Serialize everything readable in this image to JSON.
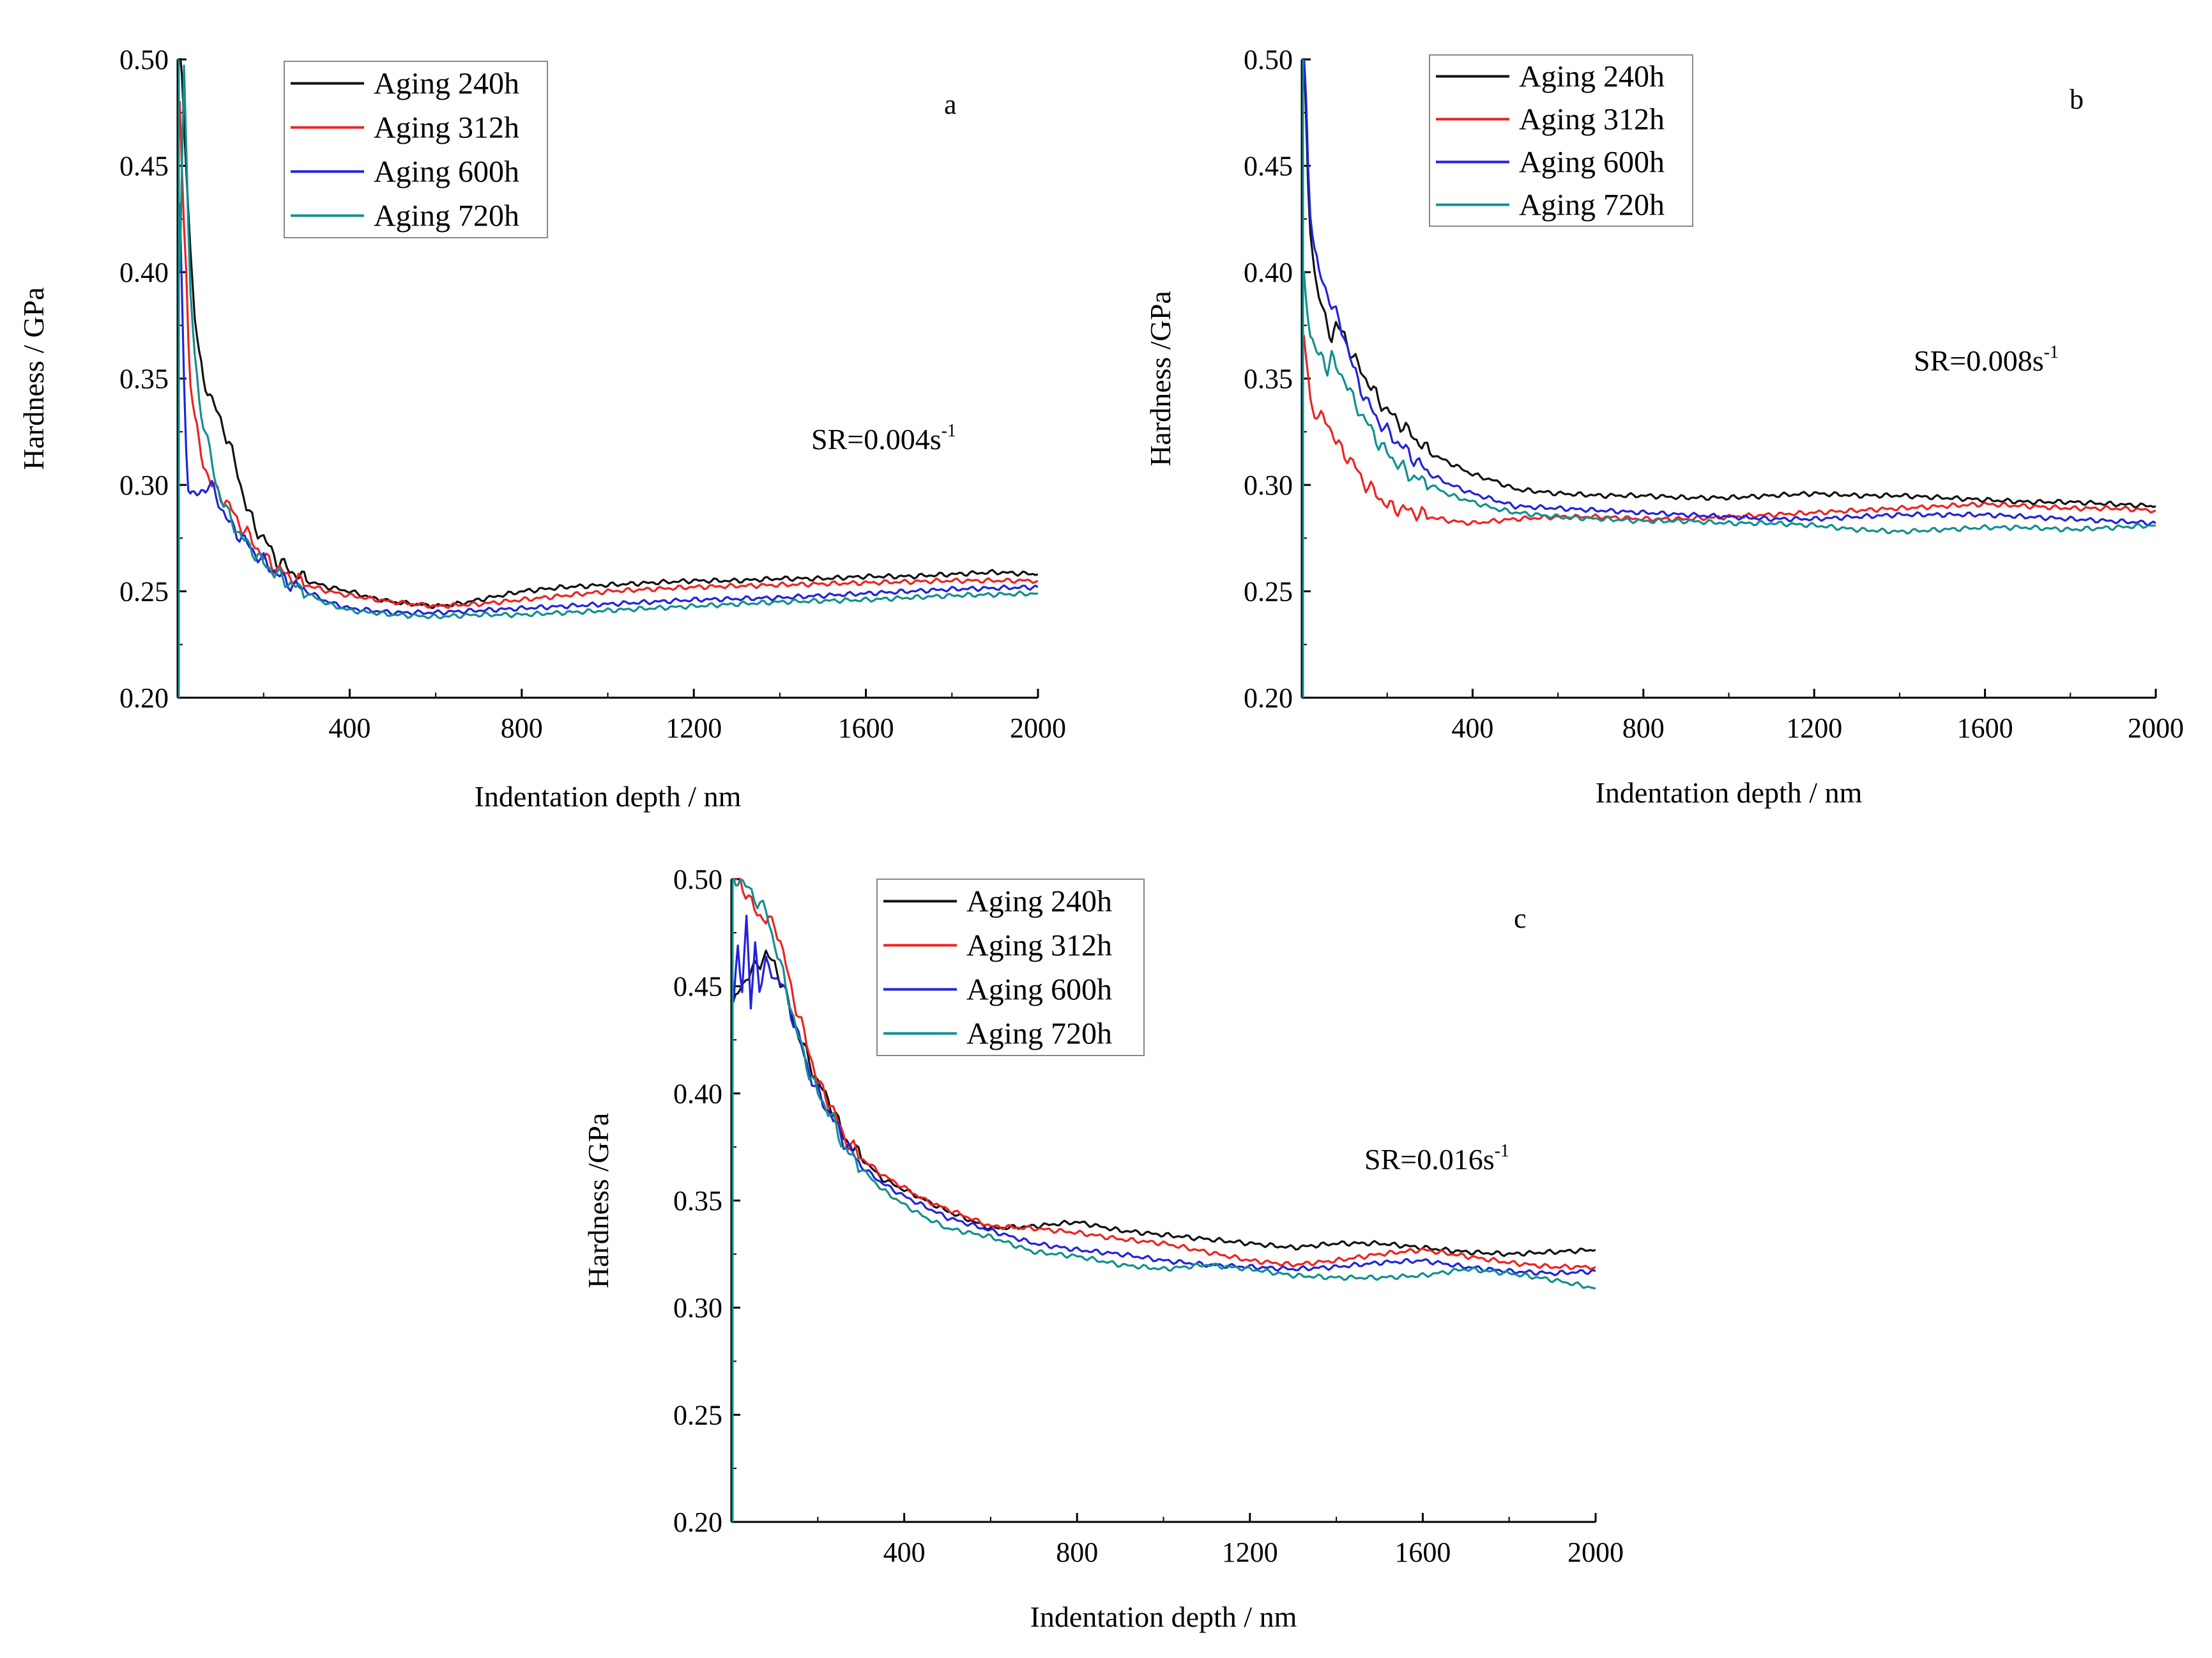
{
  "figure": {
    "series_colors": {
      "Aging 240h": "#111111",
      "Aging 312h": "#ee2222",
      "Aging 600h": "#2222dd",
      "Aging 720h": "#128f8f"
    },
    "x_ticks": [
      "400",
      "800",
      "1200",
      "1600",
      "2000"
    ],
    "y_ticks": [
      "0.20",
      "0.25",
      "0.30",
      "0.35",
      "0.40",
      "0.45",
      "0.50"
    ]
  },
  "chart_data": [
    {
      "type": "line",
      "panel": "a",
      "title": "",
      "xlabel": "Indentation depth / nm",
      "ylabel": "Hardness / GPa",
      "xlim": [
        0,
        2000
      ],
      "ylim": [
        0.2,
        0.5
      ],
      "annotation": {
        "text": "SR=0.004s",
        "superscript": "-1"
      },
      "legend_position": "top-left",
      "series": [
        {
          "name": "Aging 240h",
          "x": [
            5,
            10,
            15,
            20,
            25,
            30,
            40,
            50,
            60,
            70,
            80,
            90,
            100,
            120,
            140,
            160,
            180,
            200,
            230,
            260,
            300,
            350,
            400,
            450,
            500,
            550,
            600,
            650,
            700,
            750,
            800,
            900,
            1000,
            1100,
            1200,
            1300,
            1400,
            1500,
            1600,
            1700,
            1800,
            1900,
            2000
          ],
          "y": [
            0.5,
            0.49,
            0.47,
            0.45,
            0.43,
            0.41,
            0.38,
            0.36,
            0.35,
            0.345,
            0.34,
            0.335,
            0.33,
            0.32,
            0.305,
            0.29,
            0.28,
            0.275,
            0.265,
            0.26,
            0.255,
            0.252,
            0.25,
            0.247,
            0.245,
            0.244,
            0.243,
            0.244,
            0.246,
            0.248,
            0.25,
            0.252,
            0.253,
            0.254,
            0.255,
            0.255,
            0.256,
            0.256,
            0.257,
            0.257,
            0.258,
            0.259,
            0.258
          ]
        },
        {
          "name": "Aging 312h",
          "x": [
            5,
            10,
            15,
            20,
            25,
            30,
            40,
            50,
            60,
            70,
            80,
            100,
            120,
            150,
            180,
            200,
            250,
            300,
            350,
            400,
            500,
            600,
            700,
            800,
            900,
            1000,
            1200,
            1400,
            1600,
            1800,
            2000
          ],
          "y": [
            0.48,
            0.45,
            0.42,
            0.4,
            0.37,
            0.35,
            0.33,
            0.32,
            0.31,
            0.305,
            0.3,
            0.295,
            0.29,
            0.28,
            0.272,
            0.266,
            0.258,
            0.253,
            0.25,
            0.248,
            0.245,
            0.243,
            0.244,
            0.246,
            0.248,
            0.25,
            0.252,
            0.253,
            0.254,
            0.255,
            0.255
          ]
        },
        {
          "name": "Aging 600h",
          "x": [
            5,
            10,
            15,
            20,
            25,
            30,
            35,
            40,
            50,
            60,
            70,
            80,
            90,
            100,
            120,
            150,
            180,
            200,
            250,
            300,
            350,
            400,
            450,
            500,
            600,
            700,
            800,
            900,
            1000,
            1200,
            1400,
            1600,
            1800,
            2000
          ],
          "y": [
            0.43,
            0.39,
            0.35,
            0.32,
            0.3,
            0.295,
            0.294,
            0.295,
            0.296,
            0.298,
            0.3,
            0.298,
            0.295,
            0.29,
            0.282,
            0.275,
            0.268,
            0.264,
            0.255,
            0.25,
            0.245,
            0.242,
            0.241,
            0.24,
            0.24,
            0.241,
            0.242,
            0.243,
            0.244,
            0.246,
            0.247,
            0.249,
            0.251,
            0.252
          ]
        },
        {
          "name": "Aging 720h",
          "x": [
            5,
            10,
            15,
            20,
            25,
            30,
            40,
            50,
            60,
            70,
            80,
            90,
            100,
            120,
            150,
            180,
            200,
            250,
            300,
            350,
            400,
            450,
            500,
            600,
            700,
            800,
            900,
            1000,
            1200,
            1400,
            1600,
            1800,
            2000
          ],
          "y": [
            0.4,
            0.45,
            0.5,
            0.46,
            0.42,
            0.39,
            0.36,
            0.34,
            0.33,
            0.32,
            0.31,
            0.3,
            0.295,
            0.285,
            0.275,
            0.268,
            0.263,
            0.255,
            0.249,
            0.244,
            0.241,
            0.24,
            0.239,
            0.238,
            0.239,
            0.239,
            0.24,
            0.241,
            0.243,
            0.245,
            0.246,
            0.248,
            0.249
          ]
        }
      ]
    },
    {
      "type": "line",
      "panel": "b",
      "title": "",
      "xlabel": "Indentation depth / nm",
      "ylabel": "Hardness /GPa",
      "xlim": [
        0,
        2000
      ],
      "ylim": [
        0.2,
        0.5
      ],
      "annotation": {
        "text": "SR=0.008s",
        "superscript": "-1"
      },
      "legend_position": "top-left",
      "series": [
        {
          "name": "Aging 240h",
          "x": [
            5,
            10,
            15,
            20,
            30,
            40,
            50,
            60,
            70,
            80,
            100,
            120,
            150,
            180,
            200,
            250,
            300,
            350,
            400,
            450,
            500,
            600,
            700,
            800,
            900,
            1000,
            1100,
            1200,
            1300,
            1400,
            1500,
            1600,
            1700,
            1800,
            1900,
            2000
          ],
          "y": [
            0.5,
            0.47,
            0.44,
            0.42,
            0.4,
            0.39,
            0.38,
            0.375,
            0.37,
            0.375,
            0.37,
            0.36,
            0.35,
            0.34,
            0.335,
            0.325,
            0.315,
            0.31,
            0.305,
            0.302,
            0.298,
            0.296,
            0.295,
            0.295,
            0.294,
            0.294,
            0.295,
            0.296,
            0.295,
            0.295,
            0.294,
            0.293,
            0.292,
            0.292,
            0.291,
            0.29
          ]
        },
        {
          "name": "Aging 312h",
          "x": [
            5,
            10,
            15,
            20,
            30,
            40,
            50,
            60,
            70,
            80,
            100,
            120,
            150,
            180,
            200,
            250,
            300,
            350,
            400,
            450,
            500,
            600,
            700,
            800,
            900,
            1000,
            1100,
            1200,
            1300,
            1400,
            1500,
            1600,
            1700,
            1800,
            1900,
            2000
          ],
          "y": [
            0.37,
            0.36,
            0.35,
            0.34,
            0.335,
            0.33,
            0.332,
            0.33,
            0.325,
            0.32,
            0.315,
            0.31,
            0.3,
            0.295,
            0.29,
            0.288,
            0.285,
            0.283,
            0.282,
            0.283,
            0.284,
            0.285,
            0.285,
            0.284,
            0.284,
            0.285,
            0.286,
            0.287,
            0.288,
            0.289,
            0.29,
            0.291,
            0.29,
            0.289,
            0.289,
            0.288
          ]
        },
        {
          "name": "Aging 600h",
          "x": [
            5,
            10,
            15,
            20,
            30,
            40,
            50,
            60,
            70,
            80,
            100,
            120,
            150,
            180,
            200,
            250,
            300,
            350,
            400,
            450,
            500,
            600,
            700,
            800,
            900,
            1000,
            1100,
            1200,
            1300,
            1400,
            1500,
            1600,
            1700,
            1800,
            1900,
            2000
          ],
          "y": [
            0.5,
            0.48,
            0.45,
            0.43,
            0.41,
            0.4,
            0.395,
            0.39,
            0.385,
            0.38,
            0.37,
            0.355,
            0.34,
            0.33,
            0.325,
            0.315,
            0.305,
            0.3,
            0.296,
            0.293,
            0.29,
            0.289,
            0.288,
            0.287,
            0.286,
            0.285,
            0.284,
            0.284,
            0.285,
            0.286,
            0.286,
            0.286,
            0.285,
            0.284,
            0.283,
            0.282
          ]
        },
        {
          "name": "Aging 720h",
          "x": [
            5,
            10,
            15,
            20,
            30,
            40,
            50,
            60,
            70,
            80,
            100,
            120,
            150,
            180,
            200,
            250,
            300,
            350,
            400,
            450,
            500,
            600,
            700,
            800,
            900,
            1000,
            1100,
            1200,
            1300,
            1400,
            1500,
            1600,
            1700,
            1800,
            1900,
            2000
          ],
          "y": [
            0.4,
            0.39,
            0.38,
            0.37,
            0.365,
            0.36,
            0.36,
            0.355,
            0.36,
            0.355,
            0.35,
            0.34,
            0.33,
            0.32,
            0.315,
            0.305,
            0.3,
            0.295,
            0.292,
            0.289,
            0.287,
            0.285,
            0.284,
            0.283,
            0.283,
            0.282,
            0.282,
            0.281,
            0.279,
            0.278,
            0.279,
            0.28,
            0.28,
            0.279,
            0.28,
            0.281
          ]
        }
      ]
    },
    {
      "type": "line",
      "panel": "c",
      "title": "",
      "xlabel": "Indentation depth / nm",
      "ylabel": "Hardness /GPa",
      "xlim": [
        0,
        2000
      ],
      "ylim": [
        0.2,
        0.5
      ],
      "annotation": {
        "text": "SR=0.016s",
        "superscript": "-1"
      },
      "legend_position": "top-left",
      "series": [
        {
          "name": "Aging 240h",
          "x": [
            5,
            20,
            40,
            60,
            80,
            100,
            120,
            150,
            180,
            200,
            230,
            260,
            300,
            350,
            400,
            450,
            500,
            600,
            700,
            800,
            900,
            1000,
            1100,
            1200,
            1300,
            1400,
            1500,
            1600,
            1700,
            1800,
            1900,
            2000
          ],
          "y": [
            0.44,
            0.45,
            0.455,
            0.46,
            0.465,
            0.46,
            0.45,
            0.43,
            0.415,
            0.405,
            0.395,
            0.38,
            0.37,
            0.36,
            0.355,
            0.35,
            0.345,
            0.337,
            0.338,
            0.34,
            0.336,
            0.334,
            0.332,
            0.33,
            0.328,
            0.33,
            0.33,
            0.328,
            0.326,
            0.325,
            0.326,
            0.327
          ]
        },
        {
          "name": "Aging 312h",
          "x": [
            5,
            20,
            40,
            60,
            80,
            100,
            120,
            150,
            180,
            200,
            230,
            260,
            300,
            350,
            400,
            450,
            500,
            600,
            700,
            800,
            900,
            1000,
            1100,
            1200,
            1300,
            1400,
            1500,
            1600,
            1700,
            1800,
            1900,
            2000
          ],
          "y": [
            0.5,
            0.5,
            0.49,
            0.485,
            0.48,
            0.48,
            0.465,
            0.44,
            0.42,
            0.405,
            0.395,
            0.38,
            0.37,
            0.362,
            0.356,
            0.35,
            0.346,
            0.338,
            0.337,
            0.335,
            0.332,
            0.33,
            0.326,
            0.322,
            0.32,
            0.322,
            0.325,
            0.327,
            0.324,
            0.321,
            0.319,
            0.319
          ]
        },
        {
          "name": "Aging 600h",
          "x": [
            5,
            15,
            25,
            35,
            45,
            55,
            65,
            80,
            100,
            120,
            150,
            180,
            200,
            230,
            260,
            300,
            350,
            400,
            450,
            500,
            600,
            700,
            800,
            900,
            1000,
            1100,
            1200,
            1300,
            1400,
            1500,
            1600,
            1700,
            1800,
            1900,
            2000
          ],
          "y": [
            0.44,
            0.47,
            0.45,
            0.48,
            0.44,
            0.47,
            0.45,
            0.46,
            0.455,
            0.45,
            0.43,
            0.41,
            0.4,
            0.39,
            0.378,
            0.366,
            0.358,
            0.352,
            0.347,
            0.342,
            0.336,
            0.33,
            0.327,
            0.325,
            0.322,
            0.32,
            0.319,
            0.318,
            0.319,
            0.321,
            0.322,
            0.319,
            0.317,
            0.316,
            0.317
          ]
        },
        {
          "name": "Aging 720h",
          "x": [
            5,
            20,
            40,
            60,
            80,
            100,
            120,
            150,
            180,
            200,
            230,
            260,
            300,
            350,
            400,
            450,
            500,
            600,
            700,
            800,
            900,
            1000,
            1100,
            1200,
            1300,
            1400,
            1500,
            1600,
            1700,
            1800,
            1900,
            2000
          ],
          "y": [
            0.5,
            0.5,
            0.495,
            0.49,
            0.485,
            0.47,
            0.455,
            0.43,
            0.41,
            0.4,
            0.39,
            0.375,
            0.365,
            0.355,
            0.348,
            0.342,
            0.337,
            0.333,
            0.326,
            0.324,
            0.32,
            0.318,
            0.32,
            0.318,
            0.315,
            0.314,
            0.314,
            0.315,
            0.318,
            0.316,
            0.313,
            0.309
          ]
        }
      ]
    }
  ]
}
